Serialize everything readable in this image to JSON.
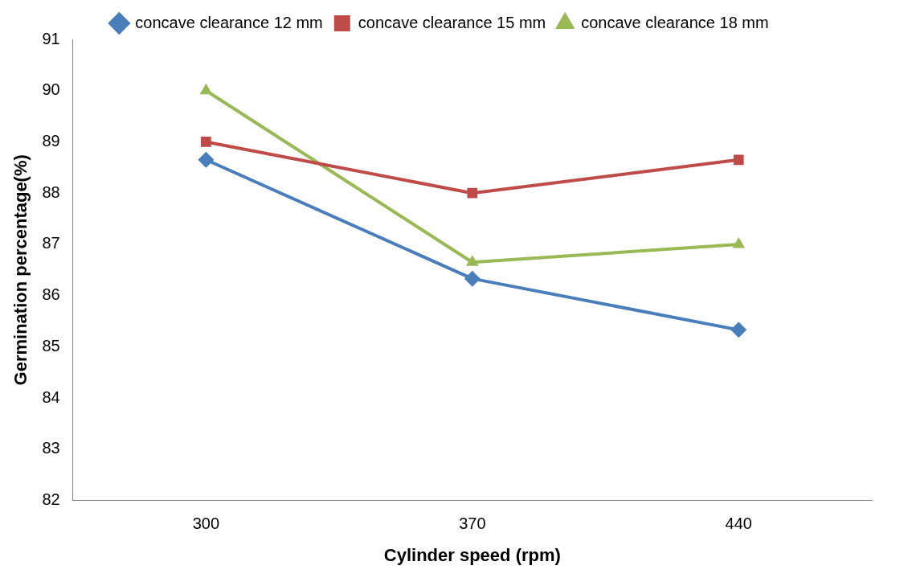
{
  "chart_data": {
    "type": "line",
    "xlabel": "Cylinder speed (rpm)",
    "ylabel": "Germination percentage(%)",
    "categories": [
      "300",
      "370",
      "440"
    ],
    "series": [
      {
        "name": "concave clearance 12 mm",
        "color": "#4a7ebb",
        "marker": "diamond",
        "values": [
          88.65,
          86.33,
          85.33
        ]
      },
      {
        "name": "concave clearance 15 mm",
        "color": "#be4b48",
        "marker": "square",
        "values": [
          89,
          88,
          88.65
        ]
      },
      {
        "name": "concave clearance 18 mm",
        "color": "#98b954",
        "marker": "triangle",
        "values": [
          90,
          86.65,
          87
        ]
      }
    ],
    "ylim": [
      82,
      91
    ],
    "yticks": [
      82,
      83,
      84,
      85,
      86,
      87,
      88,
      89,
      90,
      91
    ],
    "grid": false,
    "legend": "top",
    "line_style": "solid"
  }
}
